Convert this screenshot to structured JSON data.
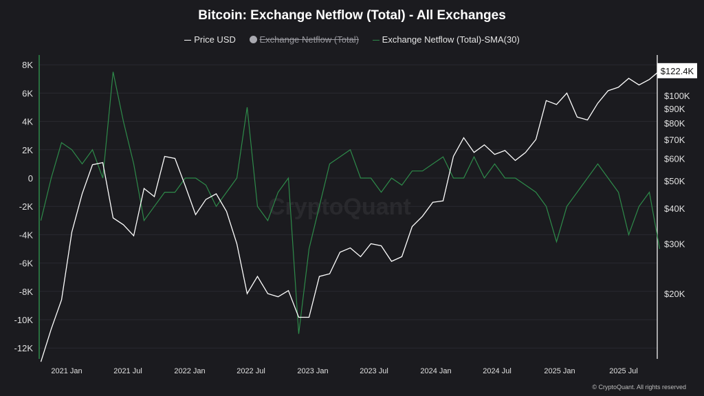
{
  "chart_data": {
    "type": "line",
    "title": "Bitcoin: Exchange Netflow (Total) - All Exchanges",
    "legend": [
      {
        "name": "Price USD",
        "color": "#ffffff",
        "enabled": true
      },
      {
        "name": "Exchange Netflow (Total)",
        "color": "#a9a9b0",
        "enabled": false
      },
      {
        "name": "Exchange Netflow (Total)-SMA(30)",
        "color": "#2e8b4a",
        "enabled": true
      }
    ],
    "legend_placement": "top-center",
    "x_ticks": [
      "2021 Jan",
      "2021 Jul",
      "2022 Jan",
      "2022 Jul",
      "2023 Jan",
      "2023 Jul",
      "2024 Jan",
      "2024 Jul",
      "2025 Jan",
      "2025 Jul"
    ],
    "y_left_ticks": [
      "8K",
      "6K",
      "4K",
      "2K",
      "0",
      "-2K",
      "-4K",
      "-6K",
      "-8K",
      "-10K",
      "-12K"
    ],
    "y_left_range": [
      -12000,
      8000
    ],
    "y_right_ticks": [
      "$100K",
      "$90K",
      "$80K",
      "$70K",
      "$60K",
      "$50K",
      "$40K",
      "$30K",
      "$20K"
    ],
    "y_right_scale": "log",
    "last_price_label": "$122.4K",
    "grid": true,
    "x": [
      "2020-10",
      "2020-11",
      "2020-12",
      "2021-01",
      "2021-02",
      "2021-03",
      "2021-04",
      "2021-05",
      "2021-06",
      "2021-07",
      "2021-08",
      "2021-09",
      "2021-10",
      "2021-11",
      "2021-12",
      "2022-01",
      "2022-02",
      "2022-03",
      "2022-04",
      "2022-05",
      "2022-06",
      "2022-07",
      "2022-08",
      "2022-09",
      "2022-10",
      "2022-11",
      "2022-12",
      "2023-01",
      "2023-02",
      "2023-03",
      "2023-04",
      "2023-05",
      "2023-06",
      "2023-07",
      "2023-08",
      "2023-09",
      "2023-10",
      "2023-11",
      "2023-12",
      "2024-01",
      "2024-02",
      "2024-03",
      "2024-04",
      "2024-05",
      "2024-06",
      "2024-07",
      "2024-08",
      "2024-09",
      "2024-10",
      "2024-11",
      "2024-12",
      "2025-01",
      "2025-02",
      "2025-03",
      "2025-04",
      "2025-05",
      "2025-06",
      "2025-07",
      "2025-08",
      "2025-09",
      "2025-10"
    ],
    "series": [
      {
        "name": "Price USD",
        "axis": "right",
        "values": [
          11500,
          15000,
          19000,
          33000,
          45000,
          57000,
          58000,
          37000,
          35000,
          32000,
          47000,
          44000,
          61000,
          60000,
          48000,
          38000,
          43000,
          45000,
          39000,
          30000,
          20000,
          23000,
          20000,
          19500,
          20500,
          16500,
          16500,
          23000,
          23500,
          28000,
          29000,
          27000,
          30000,
          29500,
          26000,
          27000,
          34500,
          37500,
          42000,
          42500,
          61000,
          71000,
          63000,
          67000,
          62000,
          64000,
          59000,
          63000,
          70000,
          96000,
          93000,
          102000,
          84000,
          82000,
          94000,
          104000,
          107000,
          115000,
          109000,
          114000,
          122400
        ]
      },
      {
        "name": "Exchange Netflow (Total)-SMA(30)",
        "axis": "left",
        "values": [
          -3000,
          0,
          2500,
          2000,
          1000,
          2000,
          0,
          7500,
          4000,
          1000,
          -3000,
          -2000,
          -1000,
          -1000,
          0,
          0,
          -500,
          -2000,
          -1000,
          0,
          5000,
          -2000,
          -3000,
          -1000,
          0,
          -11000,
          -5000,
          -2000,
          1000,
          1500,
          2000,
          0,
          0,
          -1000,
          0,
          -500,
          500,
          500,
          1000,
          1500,
          0,
          0,
          1500,
          0,
          1000,
          0,
          0,
          -500,
          -1000,
          -2000,
          -4500,
          -2000,
          -1000,
          0,
          1000,
          0,
          -1000,
          -4000,
          -2000,
          -1000,
          -5000
        ]
      }
    ]
  },
  "watermark": "CryptoQuant",
  "credit": "© CryptoQuant. All rights reserved"
}
